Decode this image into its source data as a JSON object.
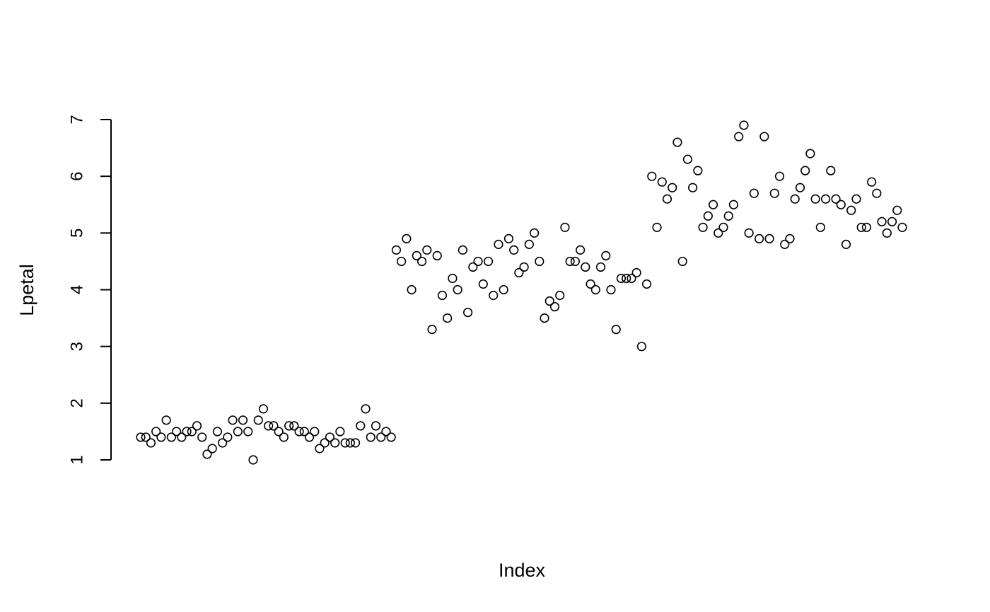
{
  "chart_data": {
    "type": "scatter",
    "title": "",
    "xlabel": "Index",
    "ylabel": "Lpetal",
    "xlim": [
      1,
      150
    ],
    "ylim": [
      1,
      6.9
    ],
    "grid": false,
    "marker": "open-circle",
    "color": "#000000",
    "yticks": [
      "1",
      "2",
      "3",
      "4",
      "5",
      "6",
      "7"
    ],
    "x": [
      1,
      2,
      3,
      4,
      5,
      6,
      7,
      8,
      9,
      10,
      11,
      12,
      13,
      14,
      15,
      16,
      17,
      18,
      19,
      20,
      21,
      22,
      23,
      24,
      25,
      26,
      27,
      28,
      29,
      30,
      31,
      32,
      33,
      34,
      35,
      36,
      37,
      38,
      39,
      40,
      41,
      42,
      43,
      44,
      45,
      46,
      47,
      48,
      49,
      50,
      51,
      52,
      53,
      54,
      55,
      56,
      57,
      58,
      59,
      60,
      61,
      62,
      63,
      64,
      65,
      66,
      67,
      68,
      69,
      70,
      71,
      72,
      73,
      74,
      75,
      76,
      77,
      78,
      79,
      80,
      81,
      82,
      83,
      84,
      85,
      86,
      87,
      88,
      89,
      90,
      91,
      92,
      93,
      94,
      95,
      96,
      97,
      98,
      99,
      100,
      101,
      102,
      103,
      104,
      105,
      106,
      107,
      108,
      109,
      110,
      111,
      112,
      113,
      114,
      115,
      116,
      117,
      118,
      119,
      120,
      121,
      122,
      123,
      124,
      125,
      126,
      127,
      128,
      129,
      130,
      131,
      132,
      133,
      134,
      135,
      136,
      137,
      138,
      139,
      140,
      141,
      142,
      143,
      144,
      145,
      146,
      147,
      148,
      149,
      150
    ],
    "y": [
      1.4,
      1.4,
      1.3,
      1.5,
      1.4,
      1.7,
      1.4,
      1.5,
      1.4,
      1.5,
      1.5,
      1.6,
      1.4,
      1.1,
      1.2,
      1.5,
      1.3,
      1.4,
      1.7,
      1.5,
      1.7,
      1.5,
      1.0,
      1.7,
      1.9,
      1.6,
      1.6,
      1.5,
      1.4,
      1.6,
      1.6,
      1.5,
      1.5,
      1.4,
      1.5,
      1.2,
      1.3,
      1.4,
      1.3,
      1.5,
      1.3,
      1.3,
      1.3,
      1.6,
      1.9,
      1.4,
      1.6,
      1.4,
      1.5,
      1.4,
      4.7,
      4.5,
      4.9,
      4.0,
      4.6,
      4.5,
      4.7,
      3.3,
      4.6,
      3.9,
      3.5,
      4.2,
      4.0,
      4.7,
      3.6,
      4.4,
      4.5,
      4.1,
      4.5,
      3.9,
      4.8,
      4.0,
      4.9,
      4.7,
      4.3,
      4.4,
      4.8,
      5.0,
      4.5,
      3.5,
      3.8,
      3.7,
      3.9,
      5.1,
      4.5,
      4.5,
      4.7,
      4.4,
      4.1,
      4.0,
      4.4,
      4.6,
      4.0,
      3.3,
      4.2,
      4.2,
      4.2,
      4.3,
      3.0,
      4.1,
      6.0,
      5.1,
      5.9,
      5.6,
      5.8,
      6.6,
      4.5,
      6.3,
      5.8,
      6.1,
      5.1,
      5.3,
      5.5,
      5.0,
      5.1,
      5.3,
      5.5,
      6.7,
      6.9,
      5.0,
      5.7,
      4.9,
      6.7,
      4.9,
      5.7,
      6.0,
      4.8,
      4.9,
      5.6,
      5.8,
      6.1,
      6.4,
      5.6,
      5.1,
      5.6,
      6.1,
      5.6,
      5.5,
      4.8,
      5.4,
      5.6,
      5.1,
      5.1,
      5.9,
      5.7,
      5.2,
      5.0,
      5.2,
      5.4,
      5.1
    ]
  }
}
